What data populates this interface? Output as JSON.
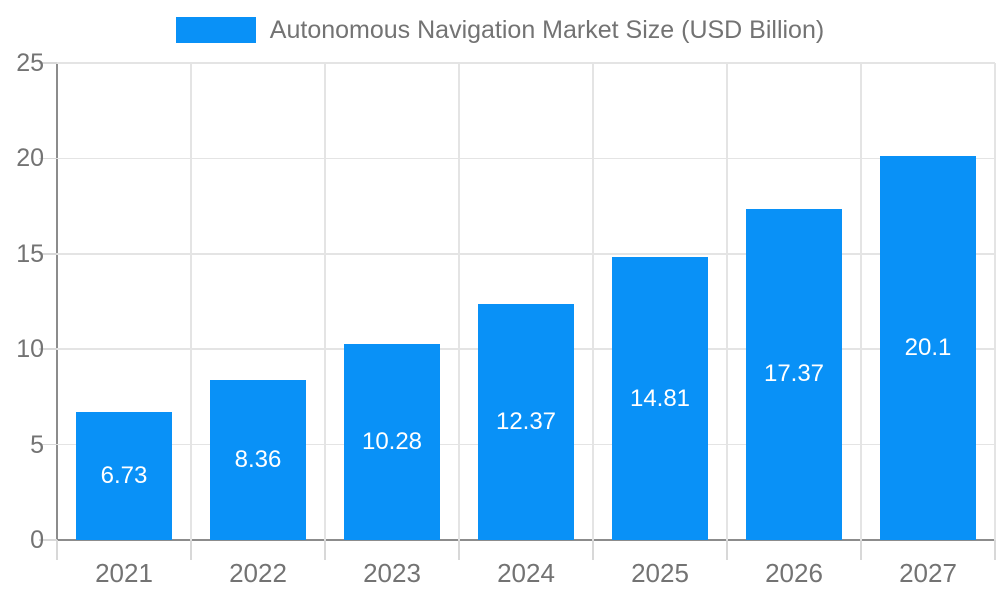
{
  "chart_data": {
    "type": "bar",
    "title": "Autonomous Navigation Market Size (USD Billion)",
    "categories": [
      "2021",
      "2022",
      "2023",
      "2024",
      "2025",
      "2026",
      "2027"
    ],
    "values": [
      6.73,
      8.36,
      10.28,
      12.37,
      14.81,
      17.37,
      20.1
    ],
    "bar_labels": [
      "6.73",
      "8.36",
      "10.28",
      "12.37",
      "14.81",
      "17.37",
      "20.1"
    ],
    "xlabel": "",
    "ylabel": "",
    "ylim": [
      0,
      25
    ],
    "yticks": [
      0,
      5,
      10,
      15,
      20,
      25
    ],
    "grid": true,
    "legend": {
      "position": "top",
      "label": "Autonomous Navigation Market Size (USD Billion)"
    },
    "colors": {
      "bar": "#0991F7",
      "text": "#737373",
      "grid": "#E4E4E4",
      "tick": "#D8D8D8",
      "axis": "#8C8C8C",
      "bar_label": "#FFFFFF",
      "background": "#FFFFFF"
    }
  }
}
